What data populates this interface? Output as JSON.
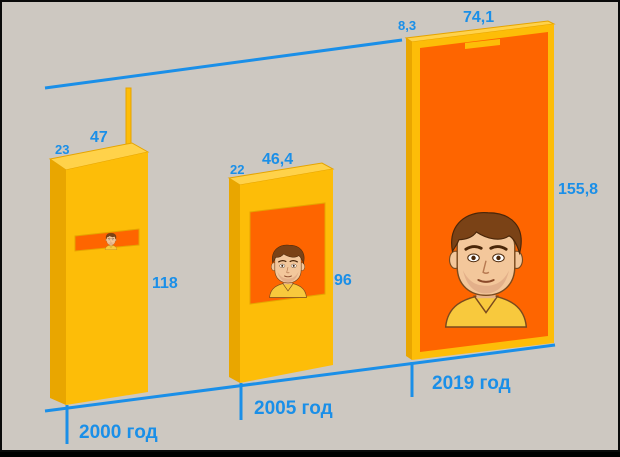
{
  "colors": {
    "background": "#cdc8c1",
    "accent_line": "#1a8fe8",
    "phone_body": "#fdbd08",
    "phone_side": "#e9a600",
    "screen": "#fe6500",
    "skin": "#f3c79b",
    "hair": "#7a4216",
    "shirt": "#f8c93d"
  },
  "phones": [
    {
      "year_label": "2000 год",
      "depth": "23",
      "width": "47",
      "height": "118"
    },
    {
      "year_label": "2005 год",
      "depth": "22",
      "width": "46,4",
      "height": "96"
    },
    {
      "year_label": "2019 год",
      "depth": "8,3",
      "width": "74,1",
      "height": "155,8"
    }
  ],
  "icons": [
    "face-avatar-icon"
  ]
}
